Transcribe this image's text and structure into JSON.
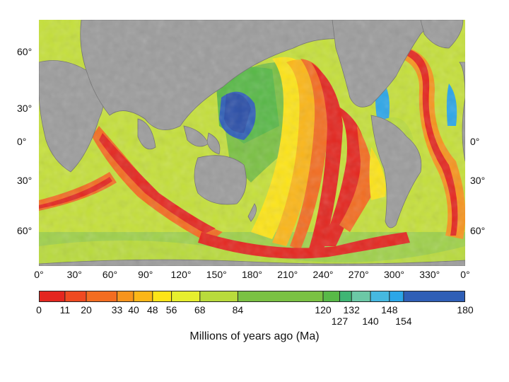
{
  "map": {
    "lat_labels_left": [
      "60°",
      "30°",
      "0°",
      "30°",
      "60°"
    ],
    "lat_labels_right": [
      "0°",
      "30°",
      "60°"
    ],
    "lon_labels": [
      "0°",
      "30°",
      "60°",
      "90°",
      "120°",
      "150°",
      "180°",
      "210°",
      "240°",
      "270°",
      "300°",
      "330°",
      "0°"
    ]
  },
  "legend": {
    "caption": "Millions of years ago (Ma)",
    "ticks_top": [
      "0",
      "11",
      "20",
      "33",
      "40",
      "48",
      "56",
      "68",
      "84",
      "120",
      "132",
      "148",
      "180"
    ],
    "ticks_bottom": [
      "127",
      "140",
      "154"
    ],
    "bands": [
      {
        "from": 0,
        "to": 11,
        "color": "#e4261f"
      },
      {
        "from": 11,
        "to": 20,
        "color": "#ef4a21"
      },
      {
        "from": 20,
        "to": 33,
        "color": "#f36d21"
      },
      {
        "from": 33,
        "to": 40,
        "color": "#f7941d"
      },
      {
        "from": 40,
        "to": 48,
        "color": "#fbb618"
      },
      {
        "from": 48,
        "to": 56,
        "color": "#fde418"
      },
      {
        "from": 56,
        "to": 68,
        "color": "#e6ee2e"
      },
      {
        "from": 68,
        "to": 84,
        "color": "#b9db3c"
      },
      {
        "from": 84,
        "to": 120,
        "color": "#7ac143"
      },
      {
        "from": 120,
        "to": 127,
        "color": "#58b947"
      },
      {
        "from": 127,
        "to": 132,
        "color": "#3fb574"
      },
      {
        "from": 132,
        "to": 140,
        "color": "#6cc8a6"
      },
      {
        "from": 140,
        "to": 148,
        "color": "#46b8e0"
      },
      {
        "from": 148,
        "to": 154,
        "color": "#2ca6e8"
      },
      {
        "from": 154,
        "to": 180,
        "color": "#2f5fb6"
      }
    ]
  }
}
